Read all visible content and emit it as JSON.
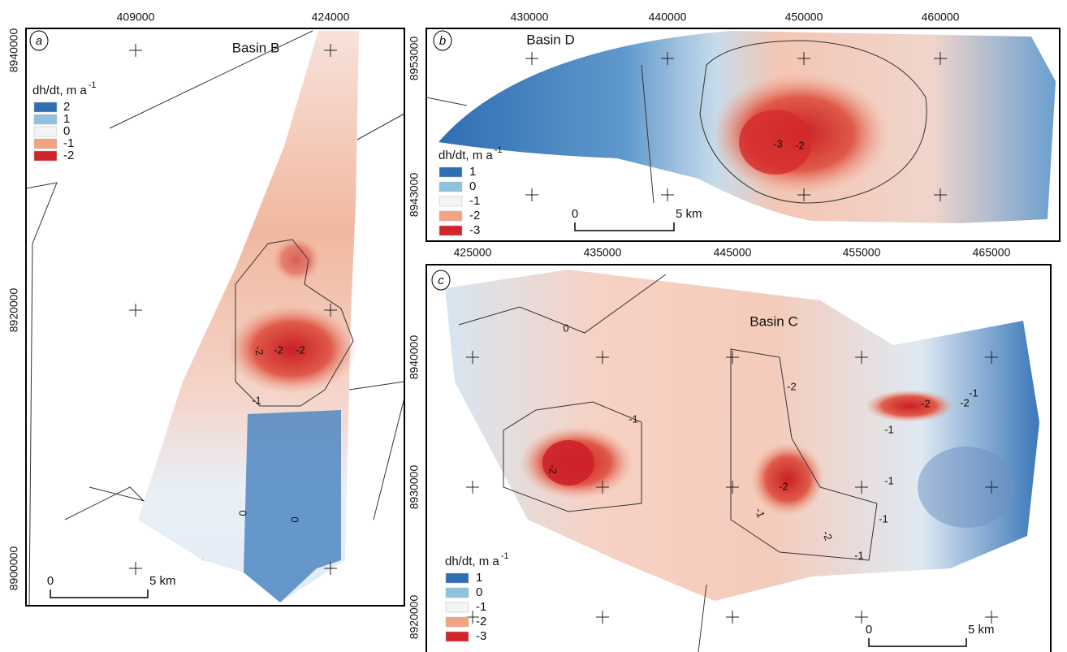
{
  "panels": [
    {
      "label": "a",
      "title": "Basin B",
      "x_ticks": [
        "409000",
        "424000"
      ],
      "y_ticks": [
        "8940000",
        "8920000",
        "8900000"
      ],
      "legend": {
        "title": "dh/dt, m a",
        "title_superscript": "-1",
        "items": [
          {
            "label": "2",
            "color": "#2f6eb3"
          },
          {
            "label": "1",
            "color": "#8fc2df"
          },
          {
            "label": "0",
            "color": "#f4f4f4"
          },
          {
            "label": "-1",
            "color": "#f2a384"
          },
          {
            "label": "-2",
            "color": "#d1252b"
          }
        ]
      },
      "scale_bar": {
        "start": "0",
        "end": "5 km"
      },
      "contour_labels": [
        "-2",
        "-2",
        "-2",
        "-1",
        "0",
        "0"
      ]
    },
    {
      "label": "b",
      "title": "Basin D",
      "x_ticks": [
        "430000",
        "440000",
        "450000",
        "460000"
      ],
      "y_ticks": [
        "8953000",
        "8943000"
      ],
      "legend": {
        "title": "dh/dt, m a",
        "title_superscript": "-1",
        "items": [
          {
            "label": "1",
            "color": "#2f6eb3"
          },
          {
            "label": "0",
            "color": "#8fc2df"
          },
          {
            "label": "-1",
            "color": "#f4f4f4"
          },
          {
            "label": "-2",
            "color": "#f2a384"
          },
          {
            "label": "-3",
            "color": "#d1252b"
          }
        ]
      },
      "scale_bar": {
        "start": "0",
        "end": "5 km"
      },
      "contour_labels": [
        "-3",
        "-2"
      ]
    },
    {
      "label": "c",
      "title": "Basin C",
      "x_ticks": [
        "425000",
        "435000",
        "445000",
        "455000",
        "465000"
      ],
      "y_ticks": [
        "8940000",
        "8930000",
        "8920000"
      ],
      "legend": {
        "title": "dh/dt, m a",
        "title_superscript": "-1",
        "items": [
          {
            "label": "1",
            "color": "#2f6eb3"
          },
          {
            "label": "0",
            "color": "#8fc2df"
          },
          {
            "label": "-1",
            "color": "#f4f4f4"
          },
          {
            "label": "-2",
            "color": "#f2a384"
          },
          {
            "label": "-3",
            "color": "#d1252b"
          }
        ]
      },
      "scale_bar": {
        "start": "0",
        "end": "5 km"
      },
      "contour_labels": [
        "0",
        "-1",
        "-2",
        "-2",
        "-1",
        "-2",
        "-2",
        "-1",
        "-2",
        "-1",
        "-1",
        "-2",
        "-1",
        "-1"
      ]
    }
  ]
}
